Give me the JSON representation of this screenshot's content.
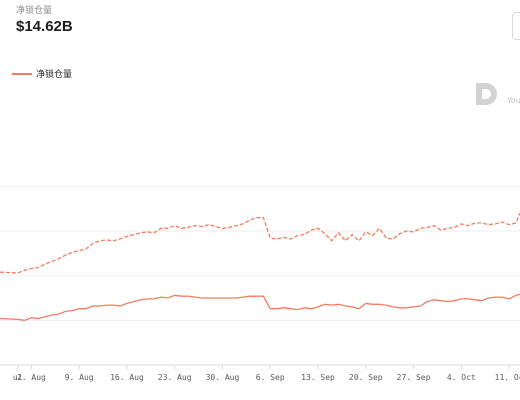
{
  "metric": {
    "label": "净锁仓量",
    "value": "$14.62B"
  },
  "legend": {
    "label": "净锁仓量"
  },
  "watermark": {
    "logo_text": "D",
    "text": "You"
  },
  "colors": {
    "series": "#f27d5d",
    "grid": "#eeeeee",
    "axis": "#d9d9d9",
    "tick_text": "#595959"
  },
  "chart_data": {
    "type": "line",
    "title": "",
    "xlabel": "",
    "ylabel": "",
    "x_tick_labels": [
      {
        "label": "ul",
        "day": 0
      },
      {
        "label": "2. Aug",
        "day": 2
      },
      {
        "label": "9. Aug",
        "day": 9
      },
      {
        "label": "16. Aug",
        "day": 16
      },
      {
        "label": "23. Aug",
        "day": 23
      },
      {
        "label": "30. Aug",
        "day": 30
      },
      {
        "label": "6. Sep",
        "day": 37
      },
      {
        "label": "13. Sep",
        "day": 44
      },
      {
        "label": "20. Sep",
        "day": 51
      },
      {
        "label": "27. Sep",
        "day": 58
      },
      {
        "label": "4. Oct",
        "day": 65
      },
      {
        "label": "11. Oc",
        "day": 72
      }
    ],
    "xlim": [
      -2.6,
      73.6
    ],
    "ylim": [
      0,
      30
    ],
    "gridlines": [
      5,
      10,
      15,
      20
    ],
    "grid": true,
    "series": [
      {
        "name": "净锁仓量",
        "style": "solid",
        "points": [
          [
            -2.6,
            5.2
          ],
          [
            0,
            5.1
          ],
          [
            1,
            5.0
          ],
          [
            2,
            5.3
          ],
          [
            3,
            5.2
          ],
          [
            4,
            5.4
          ],
          [
            5,
            5.6
          ],
          [
            6,
            5.7
          ],
          [
            7,
            6.0
          ],
          [
            8,
            6.1
          ],
          [
            9,
            6.3
          ],
          [
            10,
            6.3
          ],
          [
            11,
            6.6
          ],
          [
            12,
            6.6
          ],
          [
            13,
            6.7
          ],
          [
            14,
            6.7
          ],
          [
            15,
            6.6
          ],
          [
            16,
            6.9
          ],
          [
            17,
            7.1
          ],
          [
            18,
            7.3
          ],
          [
            19,
            7.4
          ],
          [
            20,
            7.4
          ],
          [
            21,
            7.6
          ],
          [
            22,
            7.5
          ],
          [
            23,
            7.8
          ],
          [
            24,
            7.7
          ],
          [
            25,
            7.7
          ],
          [
            26,
            7.6
          ],
          [
            27,
            7.5
          ],
          [
            28,
            7.5
          ],
          [
            29,
            7.5
          ],
          [
            30,
            7.5
          ],
          [
            31,
            7.5
          ],
          [
            32,
            7.5
          ],
          [
            33,
            7.6
          ],
          [
            34,
            7.7
          ],
          [
            35,
            7.7
          ],
          [
            36,
            7.7
          ],
          [
            37,
            6.3
          ],
          [
            38,
            6.3
          ],
          [
            39,
            6.4
          ],
          [
            40,
            6.3
          ],
          [
            41,
            6.2
          ],
          [
            42,
            6.4
          ],
          [
            43,
            6.3
          ],
          [
            44,
            6.5
          ],
          [
            45,
            6.8
          ],
          [
            46,
            6.7
          ],
          [
            47,
            6.8
          ],
          [
            48,
            6.6
          ],
          [
            49,
            6.5
          ],
          [
            50,
            6.3
          ],
          [
            51,
            6.9
          ],
          [
            52,
            6.8
          ],
          [
            53,
            6.8
          ],
          [
            54,
            6.7
          ],
          [
            55,
            6.5
          ],
          [
            56,
            6.4
          ],
          [
            57,
            6.4
          ],
          [
            58,
            6.5
          ],
          [
            59,
            6.6
          ],
          [
            60,
            7.1
          ],
          [
            61,
            7.3
          ],
          [
            62,
            7.2
          ],
          [
            63,
            7.1
          ],
          [
            64,
            7.2
          ],
          [
            65,
            7.4
          ],
          [
            66,
            7.4
          ],
          [
            67,
            7.3
          ],
          [
            68,
            7.2
          ],
          [
            69,
            7.5
          ],
          [
            70,
            7.6
          ],
          [
            71,
            7.6
          ],
          [
            72,
            7.4
          ],
          [
            73,
            7.8
          ],
          [
            73.6,
            7.9
          ]
        ]
      },
      {
        "name": "",
        "style": "dashed",
        "points": [
          [
            -2.6,
            10.4
          ],
          [
            0,
            10.3
          ],
          [
            1,
            10.6
          ],
          [
            2,
            10.8
          ],
          [
            3,
            10.9
          ],
          [
            4,
            11.3
          ],
          [
            5,
            11.6
          ],
          [
            6,
            11.9
          ],
          [
            7,
            12.3
          ],
          [
            8,
            12.6
          ],
          [
            9,
            12.8
          ],
          [
            10,
            13.0
          ],
          [
            11,
            13.6
          ],
          [
            12,
            13.9
          ],
          [
            13,
            14.0
          ],
          [
            14,
            13.9
          ],
          [
            15,
            14.1
          ],
          [
            16,
            14.4
          ],
          [
            17,
            14.6
          ],
          [
            18,
            14.8
          ],
          [
            19,
            14.9
          ],
          [
            20,
            14.8
          ],
          [
            21,
            15.3
          ],
          [
            22,
            15.3
          ],
          [
            23,
            15.6
          ],
          [
            24,
            15.3
          ],
          [
            25,
            15.4
          ],
          [
            26,
            15.6
          ],
          [
            27,
            15.5
          ],
          [
            28,
            15.7
          ],
          [
            29,
            15.5
          ],
          [
            30,
            15.3
          ],
          [
            31,
            15.4
          ],
          [
            32,
            15.6
          ],
          [
            33,
            15.8
          ],
          [
            34,
            16.2
          ],
          [
            35,
            16.5
          ],
          [
            36,
            16.5
          ],
          [
            37,
            14.2
          ],
          [
            38,
            14.1
          ],
          [
            39,
            14.3
          ],
          [
            40,
            14.1
          ],
          [
            41,
            14.5
          ],
          [
            42,
            14.6
          ],
          [
            43,
            15.1
          ],
          [
            44,
            15.3
          ],
          [
            45,
            14.7
          ],
          [
            46,
            13.9
          ],
          [
            47,
            14.8
          ],
          [
            48,
            13.9
          ],
          [
            49,
            14.6
          ],
          [
            50,
            13.9
          ],
          [
            51,
            14.9
          ],
          [
            52,
            14.5
          ],
          [
            53,
            15.3
          ],
          [
            54,
            14.2
          ],
          [
            55,
            14.1
          ],
          [
            56,
            14.7
          ],
          [
            57,
            15.0
          ],
          [
            58,
            14.9
          ],
          [
            59,
            15.3
          ],
          [
            60,
            15.4
          ],
          [
            61,
            15.6
          ],
          [
            62,
            15.1
          ],
          [
            63,
            15.3
          ],
          [
            64,
            15.4
          ],
          [
            65,
            15.8
          ],
          [
            66,
            15.6
          ],
          [
            67,
            15.9
          ],
          [
            68,
            15.9
          ],
          [
            69,
            15.7
          ],
          [
            70,
            15.8
          ],
          [
            71,
            16.0
          ],
          [
            72,
            15.7
          ],
          [
            73,
            15.9
          ],
          [
            73.6,
            17.0
          ]
        ]
      }
    ]
  }
}
